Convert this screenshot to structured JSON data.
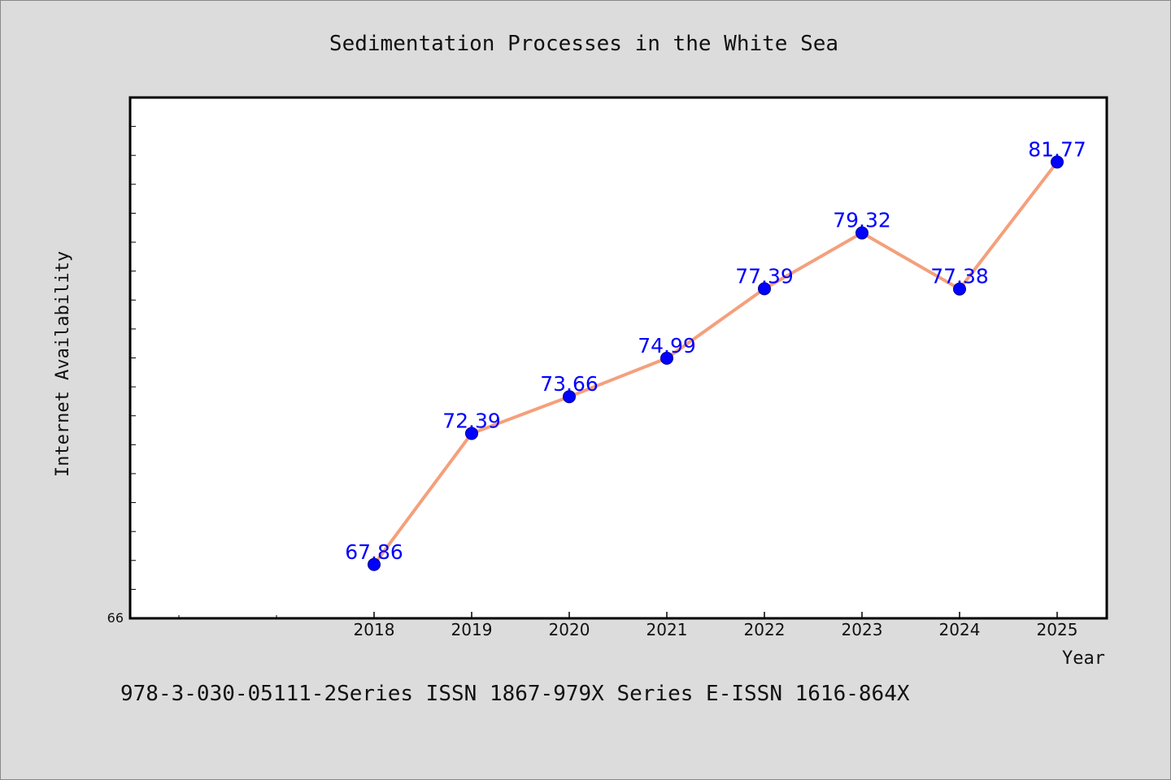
{
  "chart_data": {
    "type": "line",
    "title": "Sedimentation Processes in the White Sea",
    "xlabel": "Year",
    "ylabel": "Internet Availability",
    "categories": [
      "2018",
      "2019",
      "2020",
      "2021",
      "2022",
      "2023",
      "2024",
      "2025"
    ],
    "series": [
      {
        "values": [
          67.86,
          72.39,
          73.66,
          74.99,
          77.39,
          79.32,
          77.38,
          81.77
        ],
        "value_labels": [
          "67.86",
          "72.39",
          "73.66",
          "74.99",
          "77.39",
          "79.32",
          "77.38",
          "81.77"
        ]
      }
    ],
    "y_tick_labels": [
      "66"
    ],
    "ylim": [
      66,
      84
    ],
    "grid": false,
    "line_color": "#f4a07c",
    "marker_color": "#0000ff",
    "label_color": "#0000ff"
  },
  "footer": {
    "text": "978-3-030-05111-2Series ISSN 1867-979X Series E-ISSN 1616-864X"
  }
}
